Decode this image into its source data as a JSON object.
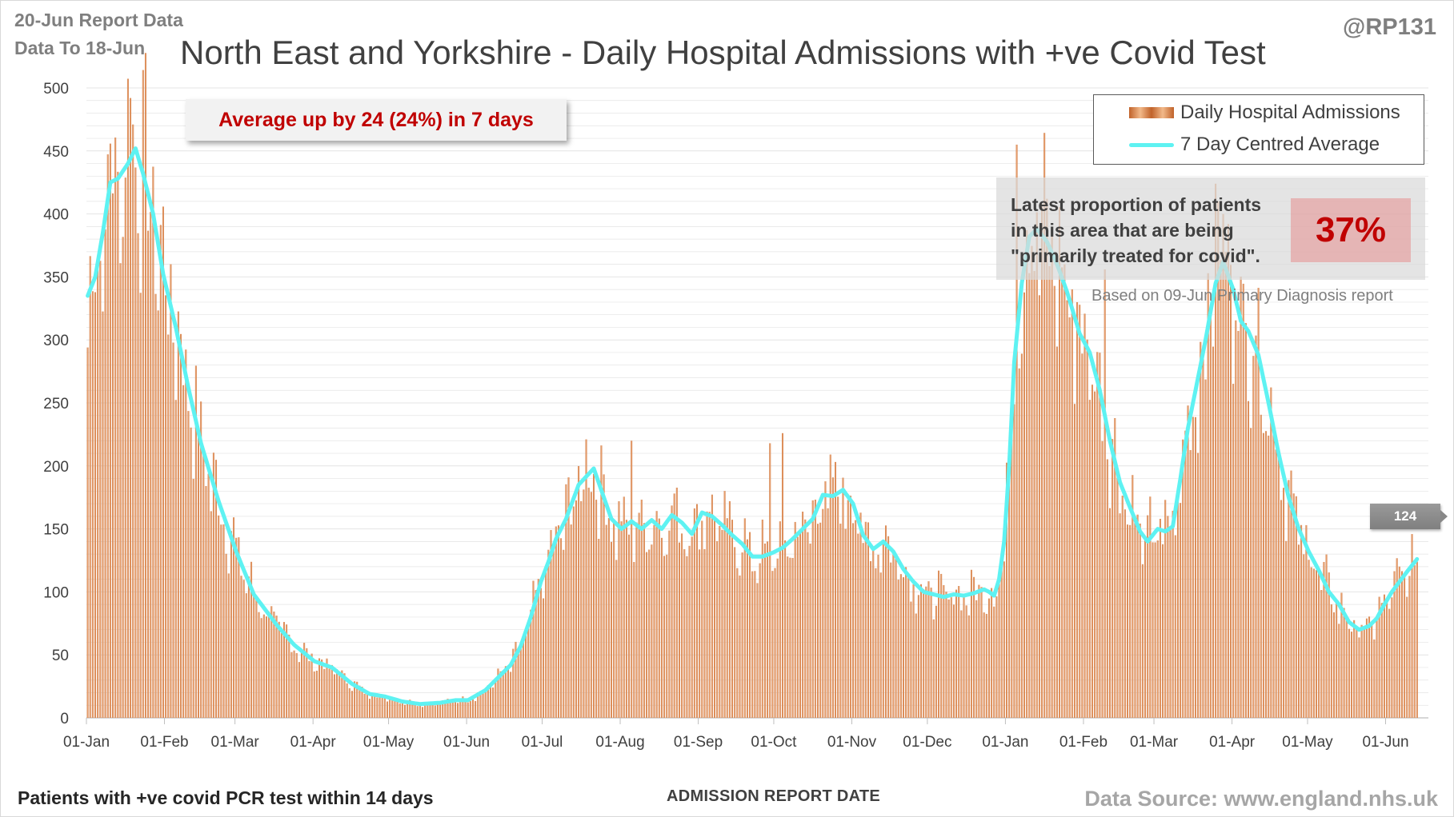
{
  "header": {
    "report_line1": "20-Jun Report Data",
    "report_line2": "Data To 18-Jun",
    "title": "North East and Yorkshire - Daily Hospital Admissions with +ve Covid Test",
    "handle": "@RP131"
  },
  "footer": {
    "left_note": "Patients with +ve covid PCR test within 14 days",
    "x_axis_title": "ADMISSION REPORT DATE",
    "source": "Data Source: www.england.nhs.uk"
  },
  "callouts": {
    "average_change": "Average up by 24 (24%) in 7 days",
    "proportion_text_line1": "Latest proportion of patients",
    "proportion_text_line2": "in this area that are being",
    "proportion_text_line3": "\"primarily treated for covid\".",
    "proportion_value": "37%",
    "proportion_note": "Based on 09-Jun Primary Diagnosis report",
    "latest_average_label": "124"
  },
  "legend": {
    "bars_label": "Daily Hospital Admissions",
    "line_label": "7 Day Centred Average"
  },
  "colors": {
    "bar": "#c8652a",
    "bar_light": "#f0b283",
    "average_line": "#5ef2f2",
    "accent_red": "#c00000",
    "grid": "#e4e4e4"
  },
  "chart_data": {
    "type": "bar",
    "title": "North East and Yorkshire - Daily Hospital Admissions with +ve Covid Test",
    "xlabel": "ADMISSION REPORT DATE",
    "ylabel": "",
    "ylim": [
      0,
      500
    ],
    "yticks": [
      0,
      50,
      100,
      150,
      200,
      250,
      300,
      350,
      400,
      450,
      500
    ],
    "x_start": "2021-01-01",
    "x_end": "2022-06-18",
    "x_tick_labels": [
      "01-Jan",
      "01-Feb",
      "01-Mar",
      "01-Apr",
      "01-May",
      "01-Jun",
      "01-Jul",
      "01-Aug",
      "01-Sep",
      "01-Oct",
      "01-Nov",
      "01-Dec",
      "01-Jan",
      "01-Feb",
      "01-Mar",
      "01-Apr",
      "01-May",
      "01-Jun"
    ],
    "x_tick_days": [
      0,
      31,
      59,
      90,
      120,
      151,
      181,
      212,
      243,
      273,
      304,
      334,
      365,
      396,
      424,
      455,
      485,
      516
    ],
    "series": [
      {
        "name": "7 Day Centred Average",
        "type": "line",
        "anchor_days": [
          0,
          3,
          6,
          9,
          12,
          16,
          19,
          22,
          26,
          30,
          35,
          40,
          45,
          52,
          59,
          66,
          75,
          82,
          90,
          97,
          105,
          112,
          118,
          125,
          132,
          140,
          146,
          151,
          158,
          163,
          168,
          172,
          176,
          180,
          183,
          186,
          190,
          195,
          201,
          205,
          208,
          212,
          216,
          220,
          224,
          228,
          232,
          236,
          240,
          244,
          248,
          252,
          256,
          260,
          264,
          268,
          272,
          276,
          280,
          284,
          288,
          292,
          296,
          300,
          304,
          308,
          312,
          316,
          320,
          324,
          328,
          332,
          336,
          340,
          344,
          348,
          352,
          356,
          358,
          360,
          362,
          364,
          366,
          368,
          371,
          374,
          377,
          381,
          385,
          389,
          394,
          398,
          402,
          406,
          410,
          414,
          418,
          421,
          425,
          428,
          431,
          434,
          437,
          440,
          444,
          448,
          451,
          455,
          458,
          461,
          465,
          469,
          473,
          477,
          481,
          485,
          489,
          493,
          497,
          501,
          505,
          509,
          512,
          515,
          518,
          521,
          524,
          528
        ],
        "anchor_values": [
          335,
          350,
          385,
          425,
          428,
          440,
          452,
          432,
          400,
          352,
          310,
          262,
          218,
          172,
          132,
          98,
          74,
          58,
          45,
          40,
          27,
          19,
          17,
          13,
          11,
          12,
          14,
          14,
          22,
          32,
          42,
          57,
          80,
          108,
          124,
          142,
          158,
          185,
          198,
          175,
          158,
          150,
          156,
          150,
          157,
          150,
          161,
          155,
          146,
          163,
          160,
          153,
          145,
          138,
          128,
          128,
          131,
          135,
          142,
          150,
          158,
          177,
          176,
          181,
          170,
          145,
          134,
          140,
          132,
          118,
          108,
          100,
          98,
          96,
          98,
          97,
          99,
          102,
          100,
          97,
          110,
          140,
          200,
          282,
          345,
          382,
          388,
          378,
          360,
          338,
          305,
          290,
          260,
          220,
          187,
          167,
          148,
          140,
          150,
          148,
          152,
          190,
          230,
          260,
          300,
          345,
          362,
          340,
          315,
          307,
          288,
          250,
          210,
          175,
          150,
          132,
          117,
          100,
          90,
          76,
          70,
          73,
          79,
          90,
          100,
          108,
          116,
          126
        ]
      },
      {
        "name": "Daily Hospital Admissions",
        "type": "bar",
        "note": "Daily bars fluctuate around the 7 day average; notable spikes",
        "peak_days": [
          17,
          18,
          216,
          271,
          276,
          369,
          388,
          404,
          448,
          449,
          453,
          528
        ],
        "peak_values": [
          492,
          471,
          220,
          218,
          226,
          455,
          360,
          356,
          424,
          410,
          392,
          124
        ]
      }
    ]
  }
}
